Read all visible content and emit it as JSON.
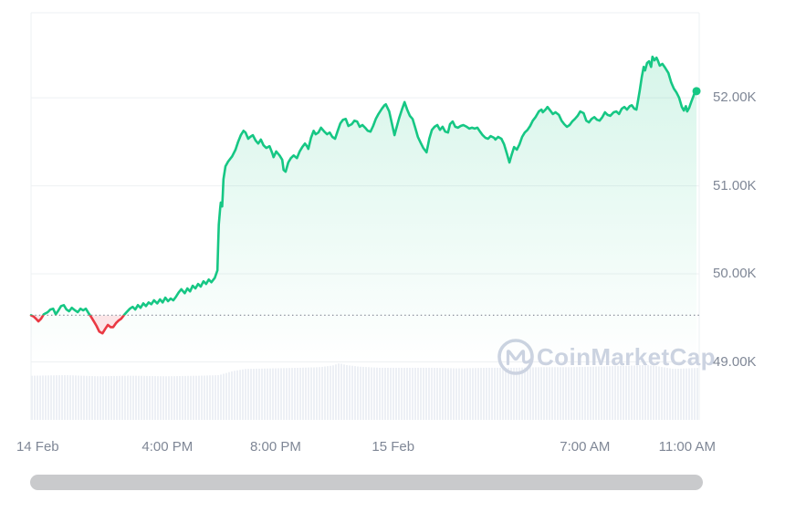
{
  "watermark": {
    "text": "CoinMarketCap"
  },
  "colors": {
    "line_up": "#16c784",
    "line_down": "#ea3943",
    "fill_up_alpha": 0.2,
    "fill_down_alpha": 0.13,
    "grid": "#eef0f3",
    "axis_text": "#7f8796",
    "baseline_dots": "#8b929e",
    "volume_bar": "#edf0f5",
    "watermark": "#ccd3e1",
    "scrollbar": "#c9cacc",
    "background": "#ffffff"
  },
  "chart_data": {
    "type": "line",
    "ylim": [
      48995,
      52965
    ],
    "y_ticks": [
      {
        "value": 52965,
        "label": ""
      },
      {
        "value": 52000,
        "label": "52.00K"
      },
      {
        "value": 51000,
        "label": "51.00K"
      },
      {
        "value": 50000,
        "label": "50.00K"
      },
      {
        "value": 49000,
        "label": "49.00K"
      }
    ],
    "x_ticks": [
      {
        "label": "14 Feb",
        "pos": 0.01
      },
      {
        "label": "4:00 PM",
        "pos": 0.204
      },
      {
        "label": "8:00 PM",
        "pos": 0.366
      },
      {
        "label": "15 Feb",
        "pos": 0.542
      },
      {
        "label": "7:00 AM",
        "pos": 0.829
      },
      {
        "label": "11:00 AM",
        "pos": 0.982
      }
    ],
    "baseline_price": 49530,
    "end_marker": {
      "pos": 0.996,
      "price": 52075
    },
    "series": [
      {
        "name": "price",
        "points": [
          [
            0.0,
            49530
          ],
          [
            0.004,
            49515
          ],
          [
            0.008,
            49485
          ],
          [
            0.011,
            49460
          ],
          [
            0.015,
            49490
          ],
          [
            0.019,
            49540
          ],
          [
            0.025,
            49565
          ],
          [
            0.029,
            49595
          ],
          [
            0.033,
            49605
          ],
          [
            0.037,
            49540
          ],
          [
            0.041,
            49585
          ],
          [
            0.045,
            49635
          ],
          [
            0.049,
            49645
          ],
          [
            0.053,
            49595
          ],
          [
            0.057,
            49575
          ],
          [
            0.061,
            49615
          ],
          [
            0.066,
            49585
          ],
          [
            0.07,
            49565
          ],
          [
            0.074,
            49605
          ],
          [
            0.078,
            49585
          ],
          [
            0.082,
            49605
          ],
          [
            0.086,
            49555
          ],
          [
            0.09,
            49510
          ],
          [
            0.094,
            49460
          ],
          [
            0.098,
            49410
          ],
          [
            0.102,
            49345
          ],
          [
            0.107,
            49325
          ],
          [
            0.111,
            49375
          ],
          [
            0.115,
            49420
          ],
          [
            0.119,
            49395
          ],
          [
            0.123,
            49395
          ],
          [
            0.127,
            49440
          ],
          [
            0.131,
            49470
          ],
          [
            0.135,
            49490
          ],
          [
            0.139,
            49530
          ],
          [
            0.143,
            49565
          ],
          [
            0.148,
            49605
          ],
          [
            0.152,
            49625
          ],
          [
            0.156,
            49595
          ],
          [
            0.16,
            49645
          ],
          [
            0.164,
            49615
          ],
          [
            0.168,
            49665
          ],
          [
            0.172,
            49635
          ],
          [
            0.176,
            49675
          ],
          [
            0.18,
            49655
          ],
          [
            0.184,
            49700
          ],
          [
            0.189,
            49665
          ],
          [
            0.193,
            49710
          ],
          [
            0.197,
            49675
          ],
          [
            0.201,
            49730
          ],
          [
            0.205,
            49690
          ],
          [
            0.209,
            49720
          ],
          [
            0.213,
            49700
          ],
          [
            0.217,
            49740
          ],
          [
            0.221,
            49790
          ],
          [
            0.225,
            49825
          ],
          [
            0.23,
            49780
          ],
          [
            0.234,
            49835
          ],
          [
            0.238,
            49800
          ],
          [
            0.242,
            49865
          ],
          [
            0.246,
            49835
          ],
          [
            0.25,
            49885
          ],
          [
            0.254,
            49855
          ],
          [
            0.258,
            49915
          ],
          [
            0.262,
            49885
          ],
          [
            0.266,
            49935
          ],
          [
            0.27,
            49905
          ],
          [
            0.275,
            49955
          ],
          [
            0.279,
            50040
          ],
          [
            0.28,
            50330
          ],
          [
            0.281,
            50560
          ],
          [
            0.283,
            50745
          ],
          [
            0.284,
            50810
          ],
          [
            0.286,
            50765
          ],
          [
            0.287,
            50910
          ],
          [
            0.288,
            51075
          ],
          [
            0.291,
            51220
          ],
          [
            0.295,
            51275
          ],
          [
            0.301,
            51335
          ],
          [
            0.306,
            51410
          ],
          [
            0.31,
            51500
          ],
          [
            0.314,
            51575
          ],
          [
            0.318,
            51625
          ],
          [
            0.321,
            51605
          ],
          [
            0.325,
            51535
          ],
          [
            0.328,
            51555
          ],
          [
            0.332,
            51575
          ],
          [
            0.336,
            51515
          ],
          [
            0.34,
            51480
          ],
          [
            0.344,
            51525
          ],
          [
            0.348,
            51460
          ],
          [
            0.352,
            51430
          ],
          [
            0.357,
            51450
          ],
          [
            0.361,
            51370
          ],
          [
            0.363,
            51325
          ],
          [
            0.367,
            51390
          ],
          [
            0.372,
            51345
          ],
          [
            0.376,
            51295
          ],
          [
            0.378,
            51180
          ],
          [
            0.381,
            51160
          ],
          [
            0.385,
            51265
          ],
          [
            0.389,
            51315
          ],
          [
            0.393,
            51345
          ],
          [
            0.398,
            51315
          ],
          [
            0.402,
            51390
          ],
          [
            0.406,
            51440
          ],
          [
            0.41,
            51480
          ],
          [
            0.413,
            51450
          ],
          [
            0.415,
            51420
          ],
          [
            0.419,
            51545
          ],
          [
            0.423,
            51625
          ],
          [
            0.426,
            51585
          ],
          [
            0.43,
            51605
          ],
          [
            0.434,
            51660
          ],
          [
            0.439,
            51615
          ],
          [
            0.443,
            51585
          ],
          [
            0.447,
            51605
          ],
          [
            0.451,
            51555
          ],
          [
            0.455,
            51535
          ],
          [
            0.459,
            51625
          ],
          [
            0.463,
            51710
          ],
          [
            0.467,
            51750
          ],
          [
            0.471,
            51760
          ],
          [
            0.475,
            51680
          ],
          [
            0.48,
            51700
          ],
          [
            0.484,
            51740
          ],
          [
            0.488,
            51730
          ],
          [
            0.492,
            51670
          ],
          [
            0.496,
            51690
          ],
          [
            0.5,
            51660
          ],
          [
            0.504,
            51625
          ],
          [
            0.508,
            51615
          ],
          [
            0.512,
            51680
          ],
          [
            0.516,
            51760
          ],
          [
            0.52,
            51815
          ],
          [
            0.525,
            51875
          ],
          [
            0.529,
            51915
          ],
          [
            0.531,
            51925
          ],
          [
            0.536,
            51845
          ],
          [
            0.54,
            51710
          ],
          [
            0.544,
            51575
          ],
          [
            0.546,
            51635
          ],
          [
            0.551,
            51770
          ],
          [
            0.555,
            51865
          ],
          [
            0.559,
            51950
          ],
          [
            0.563,
            51865
          ],
          [
            0.567,
            51795
          ],
          [
            0.571,
            51760
          ],
          [
            0.575,
            51660
          ],
          [
            0.579,
            51555
          ],
          [
            0.583,
            51490
          ],
          [
            0.587,
            51430
          ],
          [
            0.592,
            51380
          ],
          [
            0.596,
            51535
          ],
          [
            0.6,
            51635
          ],
          [
            0.604,
            51670
          ],
          [
            0.608,
            51690
          ],
          [
            0.612,
            51635
          ],
          [
            0.616,
            51670
          ],
          [
            0.62,
            51615
          ],
          [
            0.624,
            51605
          ],
          [
            0.627,
            51700
          ],
          [
            0.631,
            51730
          ],
          [
            0.635,
            51670
          ],
          [
            0.639,
            51660
          ],
          [
            0.643,
            51680
          ],
          [
            0.647,
            51690
          ],
          [
            0.652,
            51670
          ],
          [
            0.656,
            51650
          ],
          [
            0.66,
            51660
          ],
          [
            0.664,
            51650
          ],
          [
            0.668,
            51660
          ],
          [
            0.672,
            51615
          ],
          [
            0.676,
            51575
          ],
          [
            0.68,
            51545
          ],
          [
            0.684,
            51535
          ],
          [
            0.688,
            51565
          ],
          [
            0.693,
            51545
          ],
          [
            0.695,
            51525
          ],
          [
            0.699,
            51555
          ],
          [
            0.704,
            51535
          ],
          [
            0.708,
            51470
          ],
          [
            0.712,
            51370
          ],
          [
            0.716,
            51265
          ],
          [
            0.719,
            51345
          ],
          [
            0.723,
            51440
          ],
          [
            0.727,
            51410
          ],
          [
            0.731,
            51470
          ],
          [
            0.735,
            51555
          ],
          [
            0.739,
            51605
          ],
          [
            0.743,
            51635
          ],
          [
            0.747,
            51680
          ],
          [
            0.751,
            51740
          ],
          [
            0.755,
            51780
          ],
          [
            0.76,
            51845
          ],
          [
            0.764,
            51865
          ],
          [
            0.766,
            51835
          ],
          [
            0.77,
            51865
          ],
          [
            0.773,
            51895
          ],
          [
            0.777,
            51855
          ],
          [
            0.781,
            51815
          ],
          [
            0.785,
            51835
          ],
          [
            0.79,
            51805
          ],
          [
            0.794,
            51740
          ],
          [
            0.798,
            51700
          ],
          [
            0.802,
            51670
          ],
          [
            0.806,
            51690
          ],
          [
            0.81,
            51730
          ],
          [
            0.814,
            51760
          ],
          [
            0.818,
            51795
          ],
          [
            0.822,
            51845
          ],
          [
            0.827,
            51825
          ],
          [
            0.831,
            51740
          ],
          [
            0.835,
            51720
          ],
          [
            0.839,
            51760
          ],
          [
            0.843,
            51780
          ],
          [
            0.847,
            51750
          ],
          [
            0.851,
            51740
          ],
          [
            0.855,
            51780
          ],
          [
            0.859,
            51835
          ],
          [
            0.863,
            51805
          ],
          [
            0.867,
            51795
          ],
          [
            0.872,
            51835
          ],
          [
            0.876,
            51845
          ],
          [
            0.88,
            51815
          ],
          [
            0.884,
            51875
          ],
          [
            0.888,
            51895
          ],
          [
            0.892,
            51865
          ],
          [
            0.896,
            51905
          ],
          [
            0.899,
            51915
          ],
          [
            0.903,
            51875
          ],
          [
            0.906,
            51865
          ],
          [
            0.908,
            51950
          ],
          [
            0.911,
            52085
          ],
          [
            0.914,
            52230
          ],
          [
            0.917,
            52350
          ],
          [
            0.919,
            52310
          ],
          [
            0.922,
            52395
          ],
          [
            0.925,
            52415
          ],
          [
            0.928,
            52350
          ],
          [
            0.93,
            52465
          ],
          [
            0.933,
            52425
          ],
          [
            0.936,
            52455
          ],
          [
            0.938,
            52425
          ],
          [
            0.941,
            52365
          ],
          [
            0.945,
            52385
          ],
          [
            0.949,
            52340
          ],
          [
            0.954,
            52280
          ],
          [
            0.958,
            52175
          ],
          [
            0.962,
            52105
          ],
          [
            0.966,
            52060
          ],
          [
            0.97,
            52000
          ],
          [
            0.974,
            51895
          ],
          [
            0.977,
            51855
          ],
          [
            0.98,
            51905
          ],
          [
            0.982,
            51845
          ],
          [
            0.985,
            51885
          ],
          [
            0.988,
            51950
          ],
          [
            0.992,
            52030
          ],
          [
            0.995,
            52105
          ],
          [
            0.996,
            52075
          ]
        ]
      }
    ],
    "volume_profile": [
      [
        0.0,
        0.78
      ],
      [
        0.05,
        0.79
      ],
      [
        0.1,
        0.77
      ],
      [
        0.15,
        0.78
      ],
      [
        0.2,
        0.77
      ],
      [
        0.25,
        0.78
      ],
      [
        0.28,
        0.79
      ],
      [
        0.3,
        0.86
      ],
      [
        0.32,
        0.9
      ],
      [
        0.36,
        0.91
      ],
      [
        0.4,
        0.92
      ],
      [
        0.43,
        0.93
      ],
      [
        0.45,
        0.96
      ],
      [
        0.46,
        1.0
      ],
      [
        0.47,
        0.97
      ],
      [
        0.49,
        0.94
      ],
      [
        0.52,
        0.92
      ],
      [
        0.56,
        0.92
      ],
      [
        0.6,
        0.92
      ],
      [
        0.64,
        0.91
      ],
      [
        0.68,
        0.92
      ],
      [
        0.72,
        0.92
      ],
      [
        0.76,
        0.93
      ],
      [
        0.8,
        0.93
      ],
      [
        0.84,
        0.94
      ],
      [
        0.87,
        0.95
      ],
      [
        0.9,
        0.96
      ],
      [
        0.92,
        0.97
      ],
      [
        0.94,
        0.94
      ],
      [
        0.96,
        0.9
      ],
      [
        0.98,
        0.91
      ],
      [
        1.0,
        0.92
      ]
    ]
  }
}
